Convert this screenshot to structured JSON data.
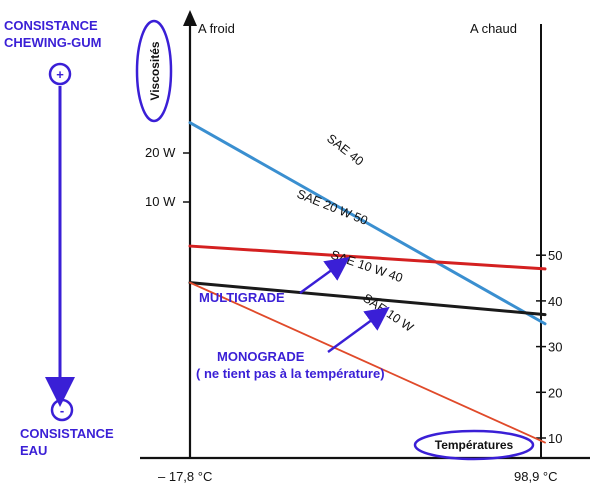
{
  "chart_data": {
    "type": "line",
    "x_labels": [
      "– 17,8 °C",
      "98,9 °C"
    ],
    "left_header": "A froid",
    "right_header": "A chaud",
    "ylabel": "Viscosités",
    "xlabel": "Températures",
    "left_ticks": [
      "20 W",
      "10 W"
    ],
    "right_ticks": [
      "50",
      "40",
      "30",
      "20",
      "10"
    ],
    "series": [
      {
        "name": "SAE 40",
        "color": "#3a8fd0",
        "start": 79,
        "end": 35
      },
      {
        "name": "SAE 20 W 50",
        "color": "#d42020",
        "start": 52,
        "end": 47
      },
      {
        "name": "SAE 10 W 40",
        "color": "#1a1a1a",
        "start": 44,
        "end": 37
      },
      {
        "name": "SAE 10 W",
        "color": "#e04a2a",
        "start": 44,
        "end": 9
      }
    ]
  },
  "annotations": {
    "top_left": [
      "CONSISTANCE",
      "CHEWING-GUM"
    ],
    "plus": "+",
    "minus": "-",
    "bottom_left": [
      "CONSISTANCE",
      "EAU"
    ],
    "multigrade": "MULTIGRADE",
    "monograde": [
      "MONOGRADE",
      "( ne tient pas à la température)"
    ]
  },
  "colors": {
    "annotation": "#3a1fd6",
    "axis": "#111111"
  }
}
